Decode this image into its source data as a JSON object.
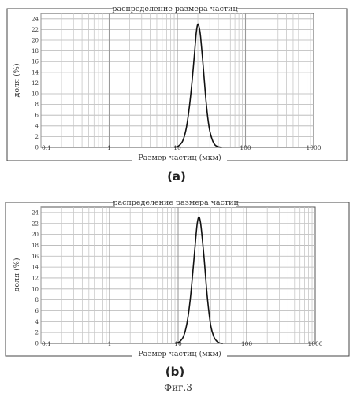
{
  "figure": {
    "caption": "Фиг.3"
  },
  "chart_data": [
    {
      "panel_label": "(a)",
      "type": "line",
      "title": "распределение размера частиц",
      "xlabel": "Размер частиц (мкм)",
      "ylabel": "доля (%)",
      "xscale": "log",
      "xlim": [
        0.1,
        1000
      ],
      "ylim": [
        0,
        25
      ],
      "grid": true,
      "xticks": [
        0.1,
        1,
        10,
        100,
        1000
      ],
      "xtick_labels": [
        "0.1",
        "1",
        "10",
        "100",
        "1000"
      ],
      "yticks": [
        0,
        2,
        4,
        6,
        8,
        10,
        12,
        14,
        16,
        18,
        20,
        22,
        24
      ],
      "yticklabels": [
        "0",
        "2",
        "4",
        "6",
        "8",
        "10",
        "12",
        "14",
        "16",
        "18",
        "20",
        "22",
        "24"
      ],
      "x": [
        9.0,
        10.5,
        12.0,
        13.5,
        15.0,
        16.5,
        18.0,
        19.0,
        20.0,
        21.0,
        22.0,
        24.0,
        26.0,
        28.0,
        30.0,
        33.0,
        36.0,
        40.0,
        45.0
      ],
      "y": [
        0.0,
        0.3,
        1.2,
        3.5,
        7.5,
        12.5,
        18.0,
        21.5,
        23.0,
        22.3,
        20.5,
        15.0,
        9.5,
        5.5,
        3.0,
        1.2,
        0.4,
        0.1,
        0.0
      ]
    },
    {
      "panel_label": "(b)",
      "type": "line",
      "title": "распределение размера частиц",
      "xlabel": "Размер частиц (мкм)",
      "ylabel": "доля (%)",
      "xscale": "log",
      "xlim": [
        0.1,
        1000
      ],
      "ylim": [
        0,
        25
      ],
      "grid": true,
      "xticks": [
        0.1,
        1,
        10,
        100,
        1000
      ],
      "xtick_labels": [
        "0.1",
        "1",
        "10",
        "100",
        "1000"
      ],
      "yticks": [
        0,
        2,
        4,
        6,
        8,
        10,
        12,
        14,
        16,
        18,
        20,
        22,
        24
      ],
      "yticklabels": [
        "0",
        "2",
        "4",
        "6",
        "8",
        "10",
        "12",
        "14",
        "16",
        "18",
        "20",
        "22",
        "24"
      ],
      "x": [
        9.0,
        10.5,
        12.0,
        13.5,
        15.0,
        16.5,
        18.0,
        19.0,
        20.0,
        21.0,
        22.0,
        24.0,
        26.0,
        28.0,
        30.0,
        33.0,
        36.0,
        40.0,
        45.0
      ],
      "y": [
        0.0,
        0.3,
        1.3,
        3.8,
        8.0,
        13.5,
        19.0,
        22.0,
        23.2,
        22.5,
        20.5,
        15.5,
        10.0,
        6.0,
        3.2,
        1.3,
        0.5,
        0.1,
        0.0
      ]
    }
  ]
}
